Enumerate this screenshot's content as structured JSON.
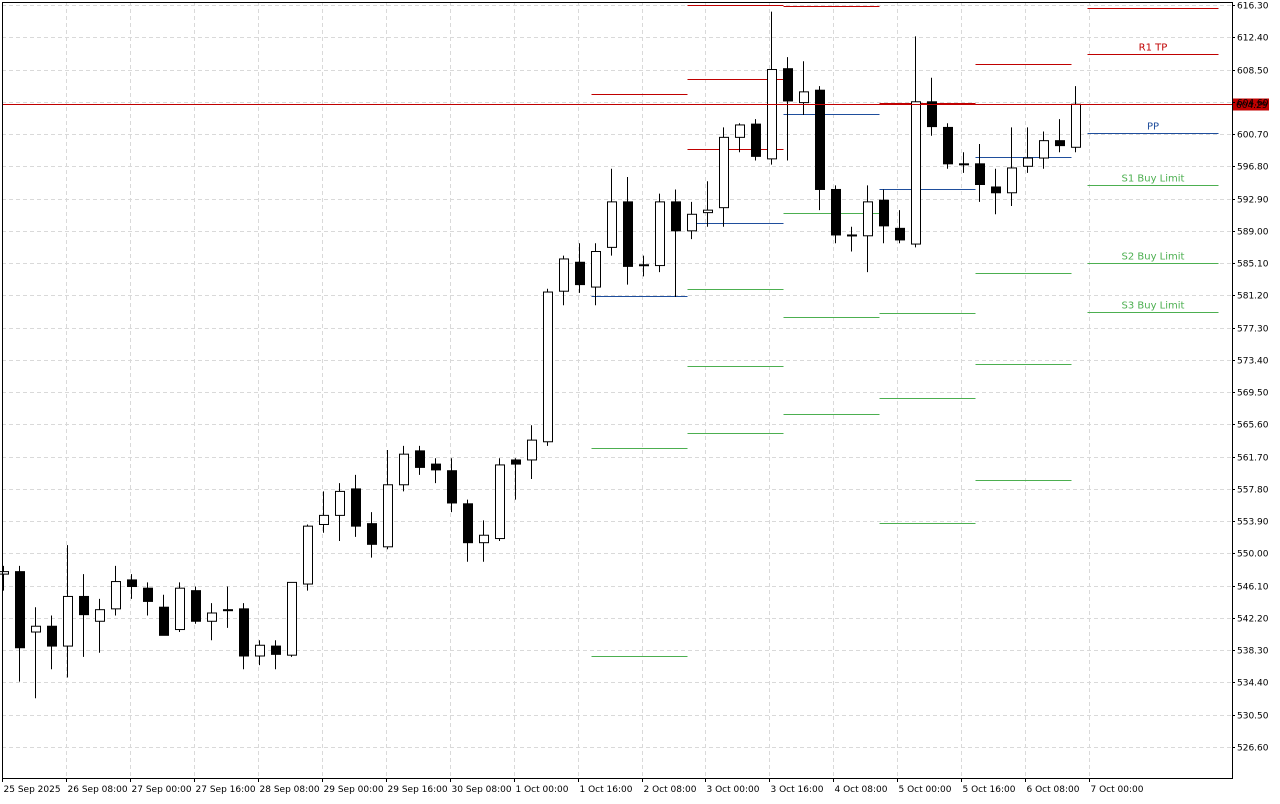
{
  "chart_data": {
    "type": "candlestick",
    "price_axis": {
      "ticks": [
        "616.30",
        "612.40",
        "608.50",
        "604.60",
        "600.70",
        "596.80",
        "592.90",
        "589.00",
        "585.10",
        "581.20",
        "577.30",
        "573.40",
        "569.50",
        "565.60",
        "561.70",
        "557.80",
        "553.90",
        "550.00",
        "546.10",
        "542.20",
        "538.30",
        "534.40",
        "530.50",
        "526.60"
      ],
      "range": [
        522.7,
        616.3
      ]
    },
    "time_axis": {
      "labels": [
        "25 Sep 2025",
        "26 Sep 08:00",
        "27 Sep 00:00",
        "27 Sep 16:00",
        "28 Sep 08:00",
        "29 Sep 00:00",
        "29 Sep 16:00",
        "30 Sep 08:00",
        "1 Oct 00:00",
        "1 Oct 16:00",
        "2 Oct 08:00",
        "3 Oct 00:00",
        "3 Oct 16:00",
        "4 Oct 08:00",
        "5 Oct 00:00",
        "5 Oct 16:00",
        "6 Oct 08:00",
        "7 Oct 00:00"
      ]
    },
    "current_price": {
      "value": 604.29,
      "label": "604.29",
      "color": "#c00000"
    },
    "candles": [
      {
        "o": 547.5,
        "h": 548.5,
        "l": 545.5,
        "c": 547.8
      },
      {
        "o": 547.8,
        "h": 548.5,
        "l": 534.5,
        "c": 538.6
      },
      {
        "o": 540.5,
        "h": 543.5,
        "l": 532.5,
        "c": 541.2
      },
      {
        "o": 541.2,
        "h": 542.5,
        "l": 536.0,
        "c": 538.8
      },
      {
        "o": 538.8,
        "h": 551.0,
        "l": 535.0,
        "c": 544.8
      },
      {
        "o": 544.8,
        "h": 547.5,
        "l": 537.5,
        "c": 542.6
      },
      {
        "o": 541.8,
        "h": 544.5,
        "l": 538.0,
        "c": 543.2
      },
      {
        "o": 543.3,
        "h": 548.5,
        "l": 542.5,
        "c": 546.6
      },
      {
        "o": 546.8,
        "h": 547.5,
        "l": 544.5,
        "c": 546.0
      },
      {
        "o": 545.8,
        "h": 546.5,
        "l": 542.5,
        "c": 544.2
      },
      {
        "o": 543.5,
        "h": 545.0,
        "l": 540.5,
        "c": 540.1
      },
      {
        "o": 540.8,
        "h": 546.5,
        "l": 540.5,
        "c": 545.8
      },
      {
        "o": 545.5,
        "h": 546.0,
        "l": 541.5,
        "c": 541.8
      },
      {
        "o": 541.8,
        "h": 544.0,
        "l": 539.5,
        "c": 542.8
      },
      {
        "o": 543.2,
        "h": 546.0,
        "l": 541.0,
        "c": 543.2
      },
      {
        "o": 543.3,
        "h": 544.0,
        "l": 536.0,
        "c": 537.6
      },
      {
        "o": 537.6,
        "h": 539.5,
        "l": 536.5,
        "c": 538.9
      },
      {
        "o": 538.8,
        "h": 539.5,
        "l": 536.0,
        "c": 537.8
      },
      {
        "o": 537.7,
        "h": 546.5,
        "l": 537.5,
        "c": 546.5
      },
      {
        "o": 546.3,
        "h": 553.5,
        "l": 545.5,
        "c": 553.3
      },
      {
        "o": 553.5,
        "h": 557.5,
        "l": 552.5,
        "c": 554.6
      },
      {
        "o": 554.6,
        "h": 558.5,
        "l": 551.5,
        "c": 557.5
      },
      {
        "o": 557.8,
        "h": 559.5,
        "l": 552.0,
        "c": 553.3
      },
      {
        "o": 553.6,
        "h": 555.0,
        "l": 549.5,
        "c": 551.1
      },
      {
        "o": 550.8,
        "h": 562.5,
        "l": 550.5,
        "c": 558.3
      },
      {
        "o": 558.3,
        "h": 563.0,
        "l": 557.5,
        "c": 562.0
      },
      {
        "o": 562.4,
        "h": 563.0,
        "l": 559.5,
        "c": 560.4
      },
      {
        "o": 560.8,
        "h": 561.5,
        "l": 558.5,
        "c": 560.1
      },
      {
        "o": 560.0,
        "h": 561.5,
        "l": 555.0,
        "c": 556.1
      },
      {
        "o": 556.0,
        "h": 556.5,
        "l": 549.0,
        "c": 551.3
      },
      {
        "o": 551.3,
        "h": 554.0,
        "l": 549.0,
        "c": 552.2
      },
      {
        "o": 551.8,
        "h": 561.5,
        "l": 551.5,
        "c": 560.7
      },
      {
        "o": 561.3,
        "h": 561.5,
        "l": 556.5,
        "c": 560.8
      },
      {
        "o": 561.3,
        "h": 565.5,
        "l": 559.0,
        "c": 563.7
      },
      {
        "o": 563.5,
        "h": 582.0,
        "l": 563.0,
        "c": 581.6
      },
      {
        "o": 581.7,
        "h": 586.0,
        "l": 580.0,
        "c": 585.6
      },
      {
        "o": 585.2,
        "h": 587.5,
        "l": 581.5,
        "c": 582.5
      },
      {
        "o": 582.2,
        "h": 587.5,
        "l": 580.0,
        "c": 586.5
      },
      {
        "o": 587.0,
        "h": 596.5,
        "l": 586.0,
        "c": 592.5
      },
      {
        "o": 592.5,
        "h": 595.5,
        "l": 582.5,
        "c": 584.7
      },
      {
        "o": 584.9,
        "h": 586.0,
        "l": 583.5,
        "c": 584.8
      },
      {
        "o": 584.8,
        "h": 593.5,
        "l": 584.0,
        "c": 592.5
      },
      {
        "o": 592.5,
        "h": 594.0,
        "l": 581.0,
        "c": 589.0
      },
      {
        "o": 589.0,
        "h": 592.5,
        "l": 588.0,
        "c": 591.0
      },
      {
        "o": 591.2,
        "h": 595.0,
        "l": 589.5,
        "c": 591.5
      },
      {
        "o": 591.8,
        "h": 601.5,
        "l": 589.5,
        "c": 600.3
      },
      {
        "o": 600.3,
        "h": 602.0,
        "l": 598.5,
        "c": 601.8
      },
      {
        "o": 601.9,
        "h": 602.5,
        "l": 597.5,
        "c": 598.0
      },
      {
        "o": 597.7,
        "h": 615.5,
        "l": 597.0,
        "c": 608.5
      },
      {
        "o": 608.6,
        "h": 610.0,
        "l": 597.5,
        "c": 604.7
      },
      {
        "o": 604.5,
        "h": 609.5,
        "l": 603.0,
        "c": 605.8
      },
      {
        "o": 606.0,
        "h": 606.5,
        "l": 591.5,
        "c": 594.0
      },
      {
        "o": 594.0,
        "h": 594.5,
        "l": 587.5,
        "c": 588.5
      },
      {
        "o": 588.5,
        "h": 589.5,
        "l": 586.5,
        "c": 588.4
      },
      {
        "o": 588.4,
        "h": 594.5,
        "l": 584.0,
        "c": 592.5
      },
      {
        "o": 592.7,
        "h": 594.0,
        "l": 587.5,
        "c": 589.6
      },
      {
        "o": 589.3,
        "h": 591.5,
        "l": 587.5,
        "c": 587.9
      },
      {
        "o": 587.4,
        "h": 612.5,
        "l": 587.0,
        "c": 604.6
      },
      {
        "o": 604.6,
        "h": 607.5,
        "l": 600.5,
        "c": 601.6
      },
      {
        "o": 601.5,
        "h": 602.0,
        "l": 596.5,
        "c": 597.1
      },
      {
        "o": 597.1,
        "h": 598.5,
        "l": 596.0,
        "c": 597.0
      },
      {
        "o": 597.1,
        "h": 599.5,
        "l": 592.5,
        "c": 594.6
      },
      {
        "o": 594.3,
        "h": 596.5,
        "l": 591.0,
        "c": 593.6
      },
      {
        "o": 593.6,
        "h": 601.5,
        "l": 592.0,
        "c": 596.6
      },
      {
        "o": 596.8,
        "h": 601.5,
        "l": 596.0,
        "c": 597.8
      },
      {
        "o": 597.8,
        "h": 601.0,
        "l": 596.5,
        "c": 599.9
      },
      {
        "o": 599.9,
        "h": 602.5,
        "l": 598.5,
        "c": 599.3
      },
      {
        "o": 599.1,
        "h": 606.5,
        "l": 598.5,
        "c": 604.3
      }
    ],
    "pivot_segments": [
      {
        "from_index": 37,
        "to_index": 42,
        "levels": [
          {
            "value": 605.5,
            "color": "#c00000"
          },
          {
            "value": 581.1,
            "color": "#1f4e9c"
          },
          {
            "value": 562.7,
            "color": "#4caf50"
          },
          {
            "value": 537.6,
            "color": "#4caf50"
          }
        ]
      },
      {
        "from_index": 43,
        "to_index": 48,
        "levels": [
          {
            "value": 616.3,
            "color": "#c00000"
          },
          {
            "value": 607.4,
            "color": "#c00000"
          },
          {
            "value": 598.9,
            "color": "#c00000"
          },
          {
            "value": 589.9,
            "color": "#1f4e9c"
          },
          {
            "value": 582.0,
            "color": "#4caf50"
          },
          {
            "value": 572.6,
            "color": "#4caf50"
          },
          {
            "value": 564.5,
            "color": "#4caf50"
          }
        ]
      },
      {
        "from_index": 49,
        "to_index": 54,
        "levels": [
          {
            "value": 616.2,
            "color": "#c00000"
          },
          {
            "value": 603.1,
            "color": "#1f4e9c"
          },
          {
            "value": 591.2,
            "color": "#4caf50"
          },
          {
            "value": 578.6,
            "color": "#4caf50"
          },
          {
            "value": 566.8,
            "color": "#4caf50"
          }
        ]
      },
      {
        "from_index": 55,
        "to_index": 60,
        "levels": [
          {
            "value": 604.5,
            "color": "#c00000"
          },
          {
            "value": 594.1,
            "color": "#1f4e9c"
          },
          {
            "value": 579.1,
            "color": "#4caf50"
          },
          {
            "value": 568.8,
            "color": "#4caf50"
          },
          {
            "value": 553.7,
            "color": "#4caf50"
          }
        ]
      },
      {
        "from_index": 61,
        "to_index": 66,
        "levels": [
          {
            "value": 609.2,
            "color": "#c00000"
          },
          {
            "value": 597.9,
            "color": "#1f4e9c"
          },
          {
            "value": 583.9,
            "color": "#4caf50"
          },
          {
            "value": 572.9,
            "color": "#4caf50"
          },
          {
            "value": 558.9,
            "color": "#4caf50"
          }
        ]
      }
    ],
    "current_levels": [
      {
        "label": "R1 TP",
        "value": 610.4,
        "color": "#c00000"
      },
      {
        "label": "",
        "value": 615.9,
        "color": "#c00000"
      },
      {
        "label": "PP",
        "value": 600.8,
        "color": "#1f4e9c"
      },
      {
        "label": "S1 Buy Limit",
        "value": 594.5,
        "color": "#4caf50"
      },
      {
        "label": "S2 Buy Limit",
        "value": 585.1,
        "color": "#4caf50"
      },
      {
        "label": "S3 Buy Limit",
        "value": 579.2,
        "color": "#4caf50"
      }
    ]
  }
}
